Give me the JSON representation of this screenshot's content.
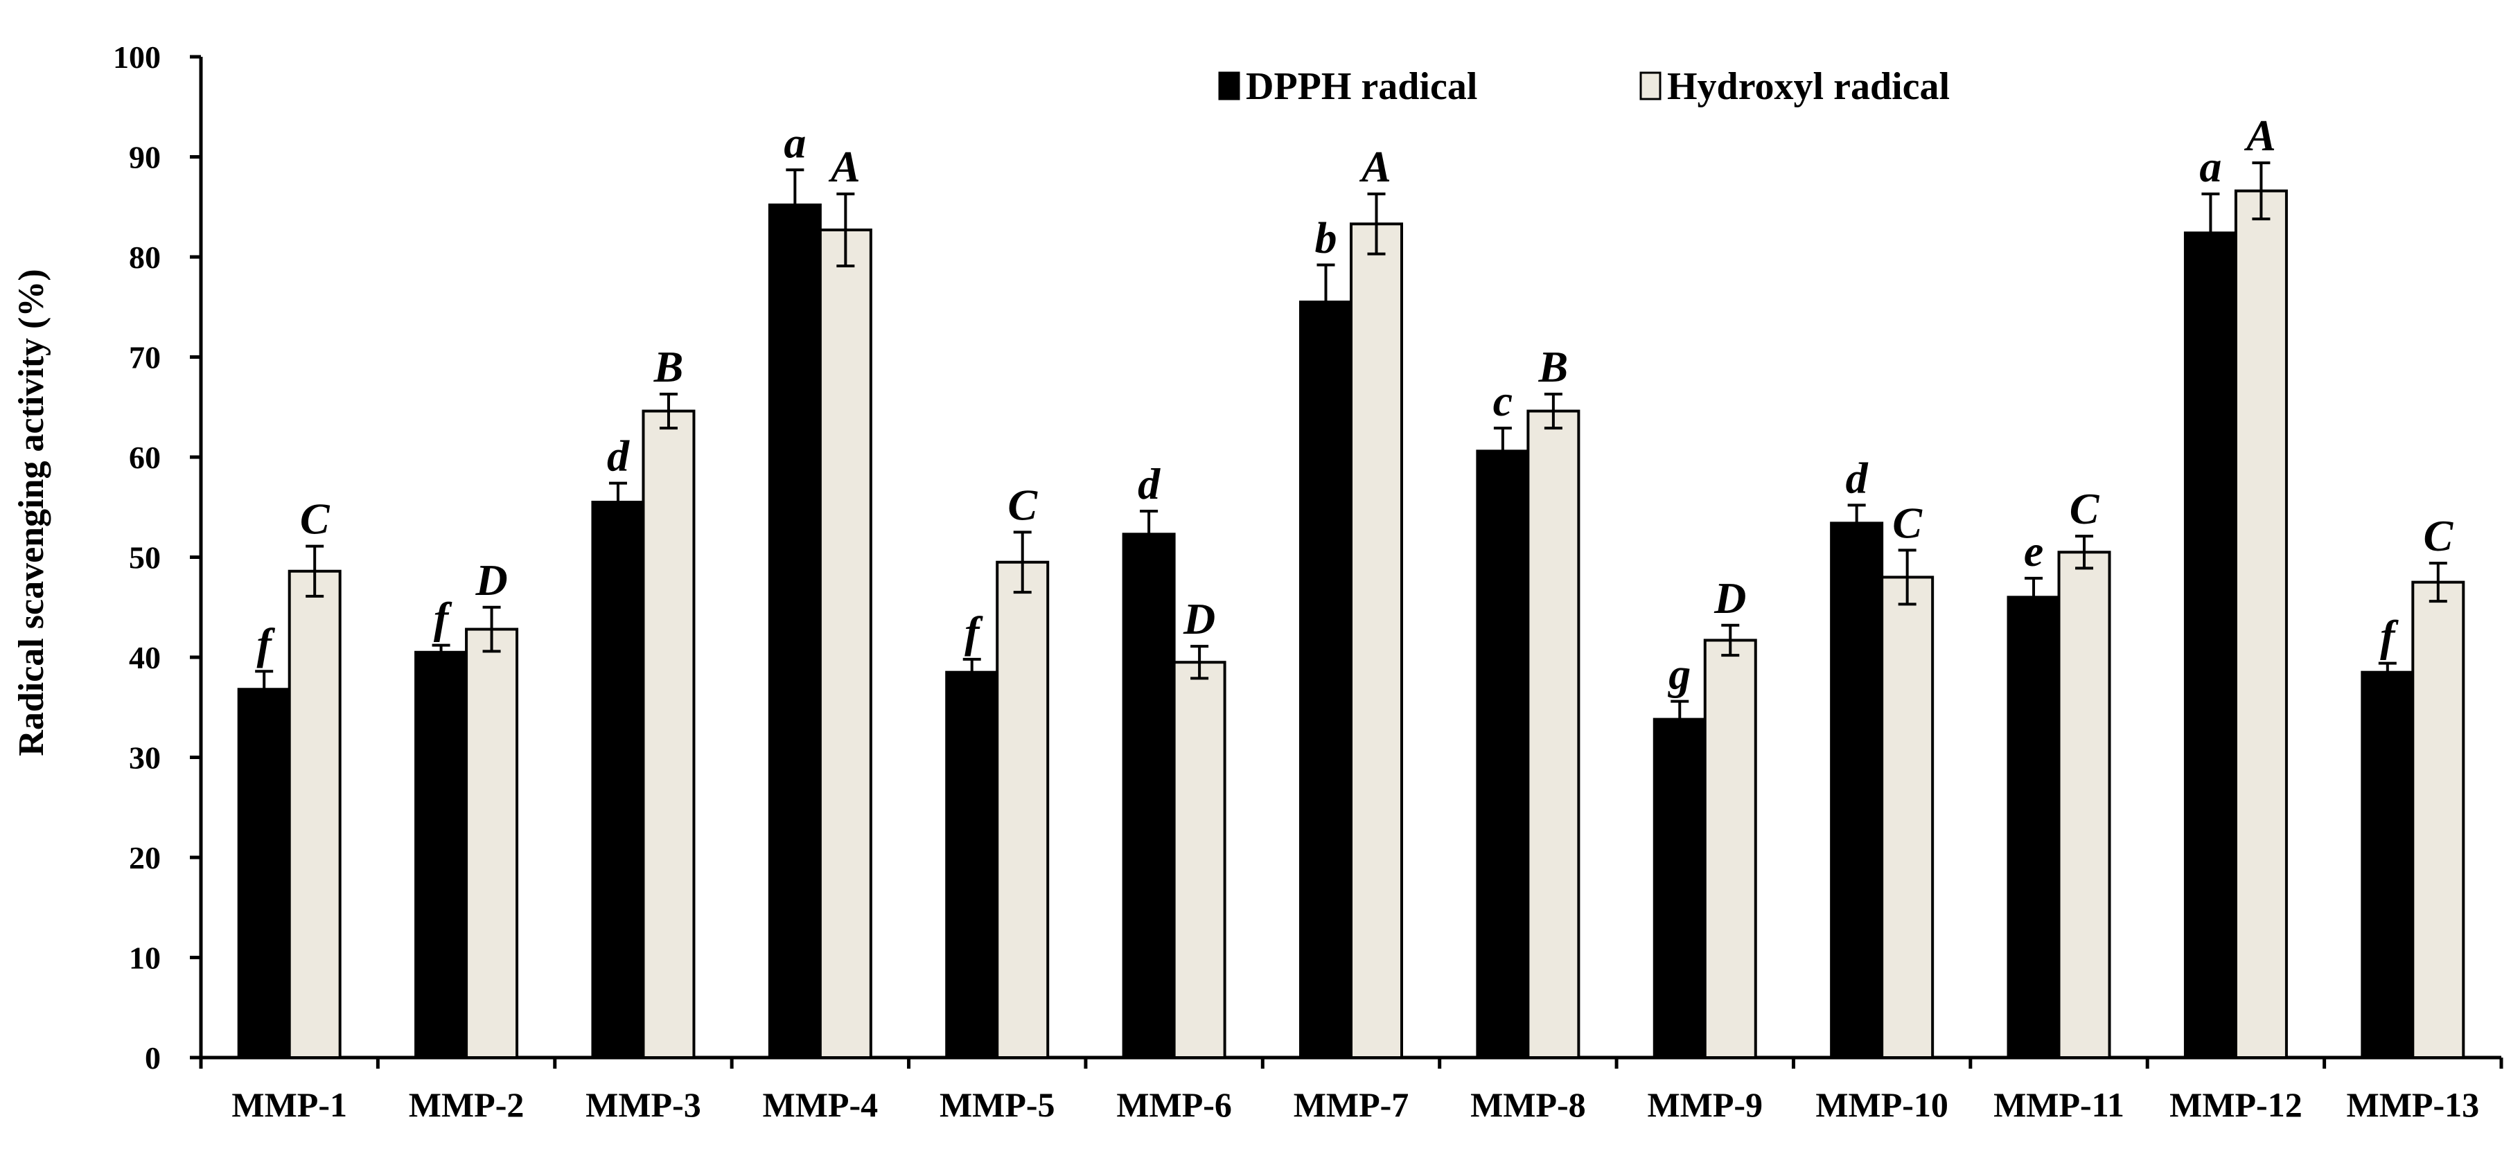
{
  "chart_data": {
    "type": "bar",
    "title": "",
    "xlabel": "",
    "ylabel": "Radical scavenging activity (%)",
    "ylim": [
      0,
      100
    ],
    "yticks": [
      0,
      10,
      20,
      30,
      40,
      50,
      60,
      70,
      80,
      90,
      100
    ],
    "grid": false,
    "legend_position": "top-center",
    "categories": [
      "MMP-1",
      "MMP-2",
      "MMP-3",
      "MMP-4",
      "MMP-5",
      "MMP-6",
      "MMP-7",
      "MMP-8",
      "MMP-9",
      "MMP-10",
      "MMP-11",
      "MMP-12",
      "MMP-13"
    ],
    "series": [
      {
        "name": "DPPH radical",
        "color": "#000000",
        "values": [
          36.8,
          40.5,
          55.5,
          85.2,
          38.5,
          52.3,
          75.5,
          60.6,
          33.8,
          53.4,
          46.0,
          82.4,
          38.5
        ],
        "errors": [
          1.8,
          0.7,
          1.9,
          3.5,
          1.3,
          2.3,
          3.7,
          2.3,
          1.8,
          1.8,
          1.9,
          3.9,
          0.9
        ],
        "labels": [
          "f",
          "f",
          "d",
          "a",
          "f",
          "d",
          "b",
          "c",
          "g",
          "d",
          "e",
          "a",
          "f"
        ]
      },
      {
        "name": "Hydroxyl radical",
        "color": "#ede9df",
        "values": [
          48.6,
          42.8,
          64.6,
          82.7,
          49.5,
          39.5,
          83.3,
          64.6,
          41.7,
          48.0,
          50.5,
          86.6,
          47.5
        ],
        "errors": [
          2.5,
          2.2,
          1.7,
          3.6,
          3.0,
          1.6,
          3.0,
          1.7,
          1.5,
          2.7,
          1.6,
          2.8,
          1.9
        ],
        "labels": [
          "C",
          "D",
          "B",
          "A",
          "C",
          "D",
          "A",
          "B",
          "D",
          "C",
          "C",
          "A",
          "C"
        ]
      }
    ]
  }
}
